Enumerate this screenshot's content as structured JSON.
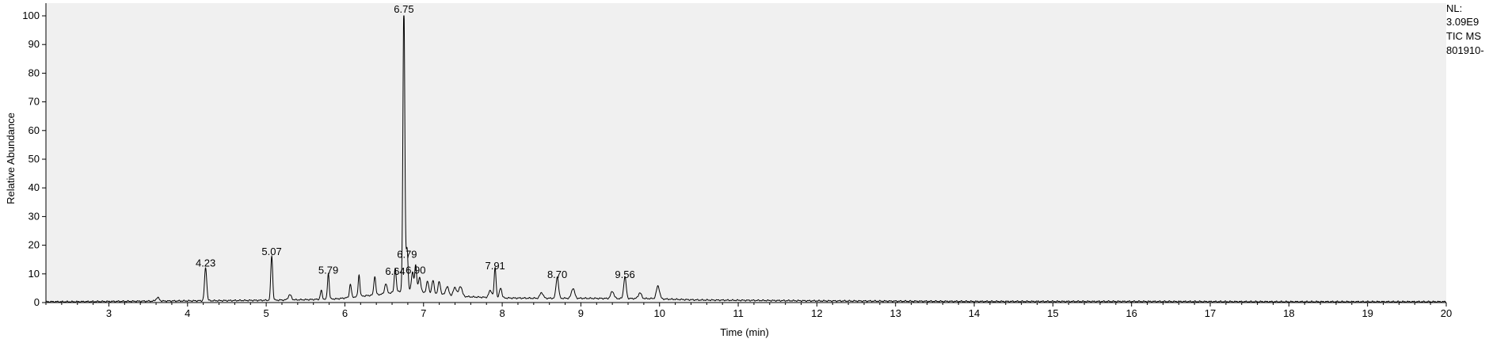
{
  "header": {
    "nl_label": "NL:",
    "nl_value": "3.09E9",
    "trace_type": "TIC  MS",
    "trace_file": "801910-"
  },
  "chart_data": {
    "type": "line",
    "title": "",
    "xlabel": "Time (min)",
    "ylabel": "Relative Abundance",
    "xlim": [
      2.2,
      20
    ],
    "ylim": [
      0,
      100
    ],
    "x_ticks": [
      3,
      4,
      5,
      6,
      7,
      8,
      9,
      10,
      11,
      12,
      13,
      14,
      15,
      16,
      17,
      18,
      19,
      20
    ],
    "y_ticks": [
      0,
      10,
      20,
      30,
      40,
      50,
      60,
      70,
      80,
      90,
      100
    ],
    "grid": false,
    "line_color": "#000000",
    "plot_background": "#f0f0f0",
    "baseline": [
      [
        2.2,
        0.3
      ],
      [
        2.5,
        0.3
      ],
      [
        3.0,
        0.4
      ],
      [
        3.5,
        0.5
      ],
      [
        4.0,
        0.6
      ],
      [
        4.5,
        0.7
      ],
      [
        5.0,
        0.8
      ],
      [
        5.5,
        1.0
      ],
      [
        5.9,
        1.3
      ],
      [
        6.2,
        2.2
      ],
      [
        6.5,
        3.0
      ],
      [
        6.7,
        4.0
      ],
      [
        6.85,
        4.5
      ],
      [
        7.0,
        3.5
      ],
      [
        7.3,
        2.5
      ],
      [
        7.6,
        2.0
      ],
      [
        8.0,
        1.6
      ],
      [
        8.5,
        1.5
      ],
      [
        9.0,
        1.5
      ],
      [
        9.5,
        1.4
      ],
      [
        9.9,
        1.4
      ],
      [
        10.1,
        1.2
      ],
      [
        10.5,
        0.9
      ],
      [
        11.0,
        0.8
      ],
      [
        12.0,
        0.6
      ],
      [
        13.0,
        0.5
      ],
      [
        14.0,
        0.4
      ],
      [
        16.0,
        0.4
      ],
      [
        18.0,
        0.3
      ],
      [
        20.0,
        0.3
      ]
    ],
    "peaks": [
      {
        "x": 3.62,
        "y": 1.2,
        "w": 0.02
      },
      {
        "x": 4.23,
        "y": 11.5,
        "w": 0.014
      },
      {
        "x": 5.07,
        "y": 15.5,
        "w": 0.012
      },
      {
        "x": 5.3,
        "y": 1.8,
        "w": 0.02
      },
      {
        "x": 5.7,
        "y": 3.0,
        "w": 0.012
      },
      {
        "x": 5.79,
        "y": 9.0,
        "w": 0.011
      },
      {
        "x": 6.07,
        "y": 4.6,
        "w": 0.012
      },
      {
        "x": 6.18,
        "y": 7.5,
        "w": 0.011
      },
      {
        "x": 6.38,
        "y": 6.5,
        "w": 0.012
      },
      {
        "x": 6.52,
        "y": 3.5,
        "w": 0.015
      },
      {
        "x": 6.64,
        "y": 8.5,
        "w": 0.012
      },
      {
        "x": 6.75,
        "y": 100,
        "w": 0.012
      },
      {
        "x": 6.79,
        "y": 14.5,
        "w": 0.012
      },
      {
        "x": 6.86,
        "y": 6.0,
        "w": 0.014
      },
      {
        "x": 6.9,
        "y": 9.0,
        "w": 0.012
      },
      {
        "x": 6.95,
        "y": 5.0,
        "w": 0.015
      },
      {
        "x": 7.05,
        "y": 4.0,
        "w": 0.015
      },
      {
        "x": 7.12,
        "y": 4.5,
        "w": 0.015
      },
      {
        "x": 7.2,
        "y": 4.5,
        "w": 0.015
      },
      {
        "x": 7.3,
        "y": 3.0,
        "w": 0.02
      },
      {
        "x": 7.4,
        "y": 3.0,
        "w": 0.02
      },
      {
        "x": 7.47,
        "y": 3.5,
        "w": 0.02
      },
      {
        "x": 7.85,
        "y": 2.5,
        "w": 0.02
      },
      {
        "x": 7.91,
        "y": 10.5,
        "w": 0.012
      },
      {
        "x": 7.98,
        "y": 3.5,
        "w": 0.015
      },
      {
        "x": 8.5,
        "y": 2.0,
        "w": 0.02
      },
      {
        "x": 8.7,
        "y": 7.5,
        "w": 0.016
      },
      {
        "x": 8.9,
        "y": 3.5,
        "w": 0.02
      },
      {
        "x": 9.4,
        "y": 2.5,
        "w": 0.02
      },
      {
        "x": 9.56,
        "y": 7.5,
        "w": 0.016
      },
      {
        "x": 9.75,
        "y": 2.0,
        "w": 0.02
      },
      {
        "x": 9.98,
        "y": 4.5,
        "w": 0.02
      }
    ],
    "annotations": [
      {
        "label": "4.23",
        "x": 4.23,
        "y": 11.5
      },
      {
        "label": "5.07",
        "x": 5.07,
        "y": 15.5
      },
      {
        "label": "5.79",
        "x": 5.79,
        "y": 9.0
      },
      {
        "label": "6.64",
        "x": 6.64,
        "y": 8.5
      },
      {
        "label": "6.75",
        "x": 6.75,
        "y": 100
      },
      {
        "label": "6.79",
        "x": 6.79,
        "y": 14.5
      },
      {
        "label": "6.90",
        "x": 6.9,
        "y": 9.0
      },
      {
        "label": "7.91",
        "x": 7.91,
        "y": 10.5
      },
      {
        "label": "8.70",
        "x": 8.7,
        "y": 7.5
      },
      {
        "label": "9.56",
        "x": 9.56,
        "y": 7.5
      }
    ]
  }
}
